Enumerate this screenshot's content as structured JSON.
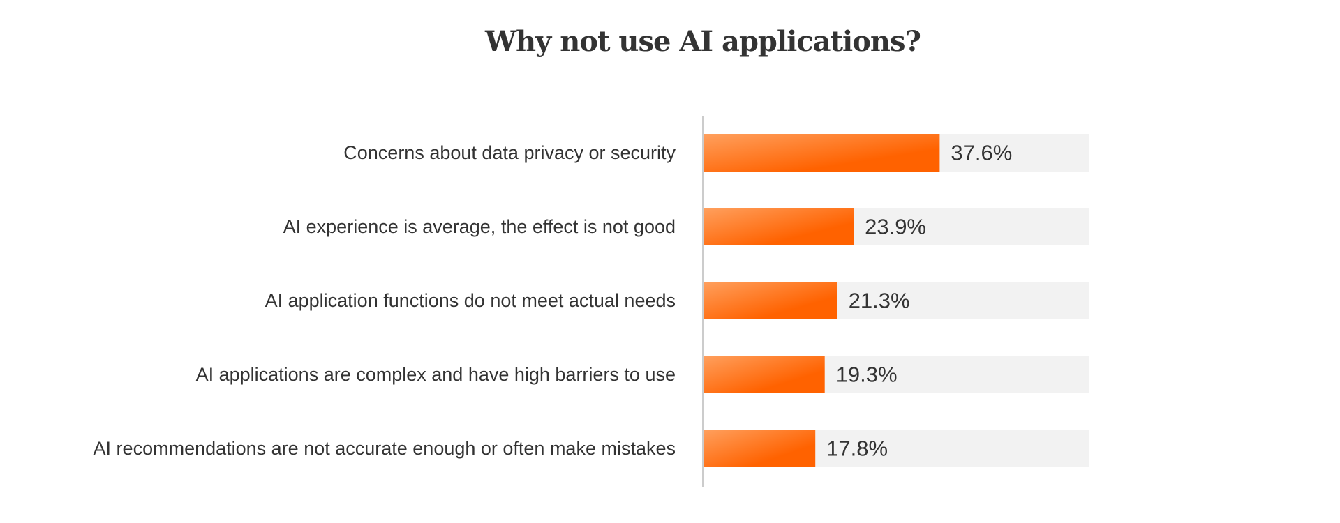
{
  "colors": {
    "bar_start": "#ffa05e",
    "bar_end": "#ff6200",
    "track": "#f2f2f2",
    "axis": "#cccccc",
    "text": "#333333"
  },
  "chart_data": {
    "type": "bar",
    "orientation": "horizontal",
    "title": "Why not use AI applications?",
    "categories": [
      "Concerns about data privacy or security",
      "AI experience is average, the effect is not good",
      "AI application functions do not meet actual needs",
      "AI applications are complex and have high barriers to use",
      "AI recommendations are not accurate enough or often make mistakes"
    ],
    "values": [
      37.6,
      23.9,
      21.3,
      19.3,
      17.8
    ],
    "value_labels": [
      "37.6%",
      "23.9%",
      "21.3%",
      "19.3%",
      "17.8%"
    ],
    "xlim": [
      0,
      50
    ],
    "xlabel": "",
    "ylabel": "",
    "grid": false
  }
}
